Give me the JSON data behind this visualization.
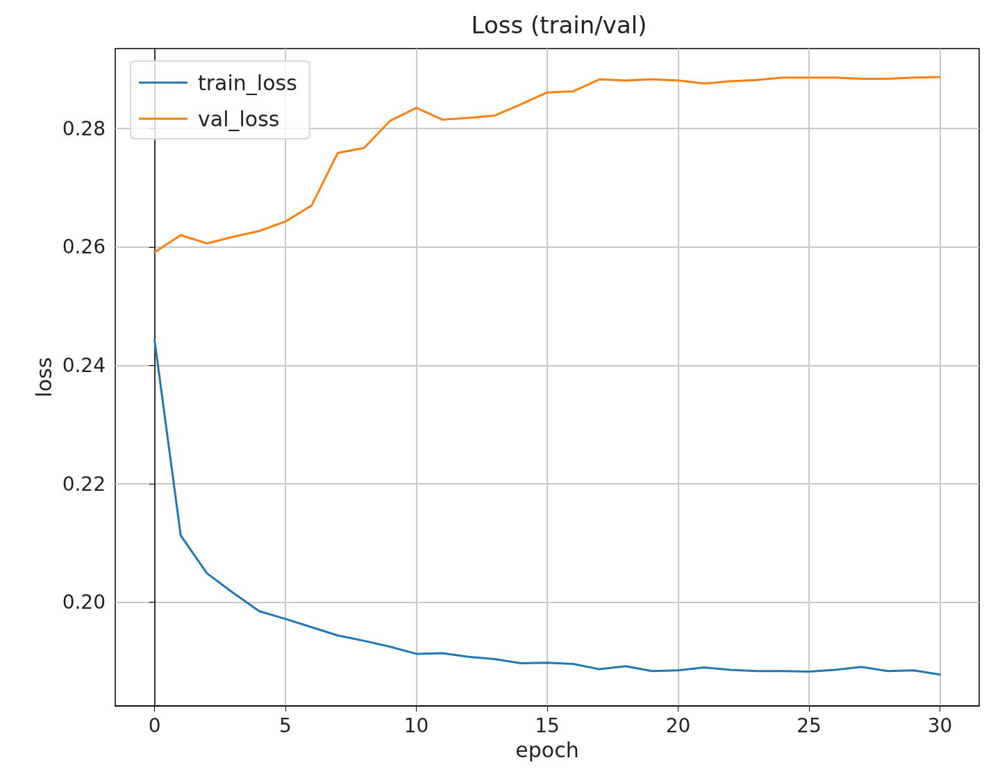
{
  "chart_data": {
    "type": "line",
    "title": "Loss (train/val)",
    "xlabel": "epoch",
    "ylabel": "loss",
    "x": [
      0,
      1,
      2,
      3,
      4,
      5,
      6,
      7,
      8,
      9,
      10,
      11,
      12,
      13,
      14,
      15,
      16,
      17,
      18,
      19,
      20,
      21,
      22,
      23,
      24,
      25,
      26,
      27,
      28,
      29,
      30
    ],
    "series": [
      {
        "name": "train_loss",
        "color": "#1f77b4",
        "values": [
          0.2443,
          0.2113,
          0.2049,
          0.2016,
          0.1985,
          0.1972,
          0.1958,
          0.1944,
          0.1935,
          0.1925,
          0.1913,
          0.1914,
          0.1908,
          0.1904,
          0.1897,
          0.1898,
          0.1896,
          0.1887,
          0.1892,
          0.1884,
          0.1885,
          0.189,
          0.1886,
          0.1884,
          0.1884,
          0.1883,
          0.1886,
          0.1891,
          0.1884,
          0.1885,
          0.1878
        ]
      },
      {
        "name": "val_loss",
        "color": "#ff7f0e",
        "values": [
          0.2591,
          0.262,
          0.2606,
          0.2617,
          0.2627,
          0.2643,
          0.267,
          0.2759,
          0.2767,
          0.2813,
          0.2835,
          0.2815,
          0.2818,
          0.2822,
          0.2841,
          0.2861,
          0.2863,
          0.2883,
          0.2881,
          0.2883,
          0.2881,
          0.2876,
          0.288,
          0.2882,
          0.2886,
          0.2886,
          0.2886,
          0.2884,
          0.2884,
          0.2886,
          0.2887
        ]
      }
    ],
    "xlim": [
      -1.5,
      31.5
    ],
    "xticks": [
      0,
      5,
      10,
      15,
      20,
      25,
      30
    ],
    "ylim": [
      0.1825,
      0.2935
    ],
    "yticks": [
      {
        "value": 0.2,
        "label": "0.20"
      },
      0.22,
      0.24,
      0.26,
      0.28
    ],
    "grid": true,
    "legend": "top left",
    "marker": "none",
    "line_style": "solid"
  }
}
